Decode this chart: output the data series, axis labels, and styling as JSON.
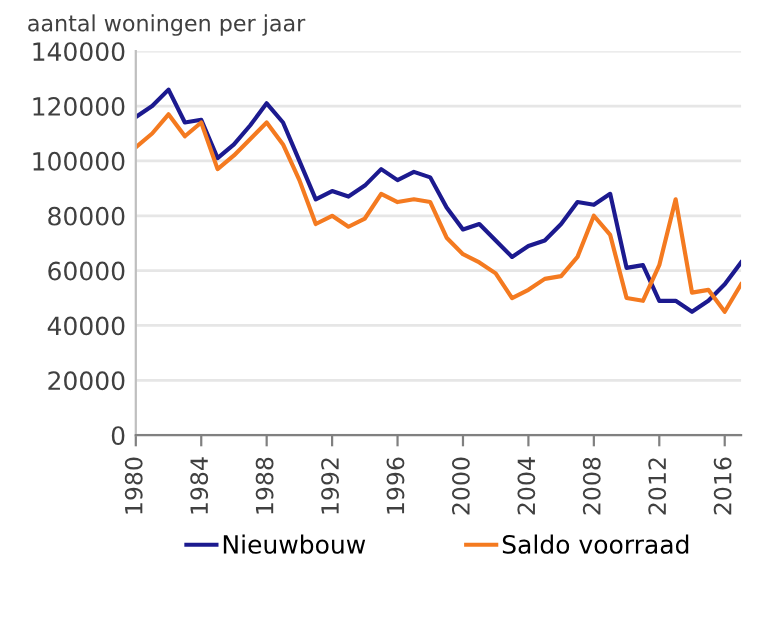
{
  "chart_data": {
    "type": "line",
    "ylabel": "aantal woningen per jaar",
    "x": [
      1980,
      1981,
      1982,
      1983,
      1984,
      1985,
      1986,
      1987,
      1988,
      1989,
      1990,
      1991,
      1992,
      1993,
      1994,
      1995,
      1996,
      1997,
      1998,
      1999,
      2000,
      2001,
      2002,
      2003,
      2004,
      2005,
      2006,
      2007,
      2008,
      2009,
      2010,
      2011,
      2012,
      2013,
      2014,
      2015,
      2016,
      2017
    ],
    "series": [
      {
        "name": "Nieuwbouw",
        "color": "#1c1a8f",
        "values": [
          116000,
          120000,
          126000,
          114000,
          115000,
          101000,
          106000,
          113000,
          121000,
          114000,
          100000,
          86000,
          89000,
          87000,
          91000,
          97000,
          93000,
          96000,
          94000,
          83000,
          75000,
          77000,
          71000,
          65000,
          69000,
          71000,
          77000,
          85000,
          84000,
          88000,
          61000,
          62000,
          49000,
          49000,
          45000,
          49000,
          55000,
          63000
        ]
      },
      {
        "name": "Saldo voorraad",
        "color": "#f47a20",
        "values": [
          105000,
          110000,
          117000,
          109000,
          114000,
          97000,
          102000,
          108000,
          114000,
          106000,
          93000,
          77000,
          80000,
          76000,
          79000,
          88000,
          85000,
          86000,
          85000,
          72000,
          66000,
          63000,
          59000,
          50000,
          53000,
          57000,
          58000,
          65000,
          80000,
          73000,
          50000,
          49000,
          62000,
          86000,
          52000,
          53000,
          45000,
          55000
        ]
      }
    ],
    "xlim": [
      1980,
      2017
    ],
    "xticks": [
      1980,
      1984,
      1988,
      1992,
      1996,
      2000,
      2004,
      2008,
      2012,
      2016
    ],
    "ylim": [
      0,
      140000
    ],
    "yticks": [
      0,
      20000,
      40000,
      60000,
      80000,
      100000,
      120000,
      140000
    ],
    "grid": "y",
    "legend": "bottom",
    "marker": "none",
    "line_style": "solid"
  }
}
